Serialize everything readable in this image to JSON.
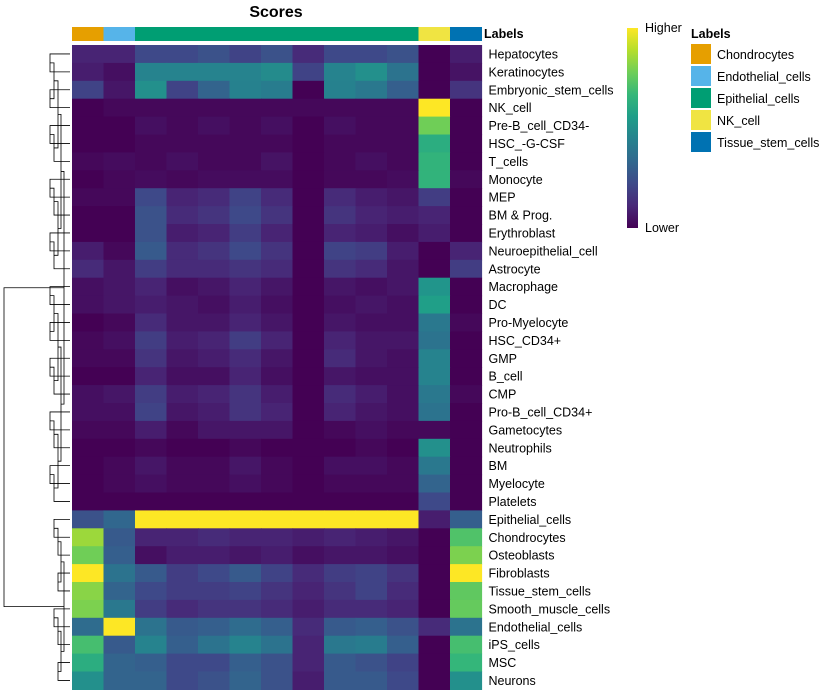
{
  "chart_data": {
    "type": "heatmap",
    "title": "Scores",
    "annotation_title": "Labels",
    "legend_title": "Labels",
    "colorbar": {
      "high_label": "Higher",
      "low_label": "Lower",
      "stops": [
        "#440154",
        "#482878",
        "#3e4a89",
        "#31688e",
        "#26828e",
        "#1f9e89",
        "#35b779",
        "#6ece58",
        "#b5de2b",
        "#fde725"
      ]
    },
    "label_colors": {
      "Chondrocytes": "#E69F00",
      "Endothelial_cells": "#56B4E9",
      "Epithelial_cells": "#009E73",
      "NK_cell": "#F0E442",
      "Tissue_stem_cells": "#0072B2"
    },
    "legend_entries": [
      "Chondrocytes",
      "Endothelial_cells",
      "Epithelial_cells",
      "NK_cell",
      "Tissue_stem_cells"
    ],
    "columns": [
      "Chondrocytes",
      "Endothelial_cells",
      "Epithelial_cells",
      "Epithelial_cells",
      "Epithelial_cells",
      "Epithelial_cells",
      "Epithelial_cells",
      "Epithelial_cells",
      "Epithelial_cells",
      "Epithelial_cells",
      "Epithelial_cells",
      "NK_cell",
      "Tissue_stem_cells"
    ],
    "rows": [
      "Hepatocytes",
      "Keratinocytes",
      "Embryonic_stem_cells",
      "NK_cell",
      "Pre-B_cell_CD34-",
      "HSC_-G-CSF",
      "T_cells",
      "Monocyte",
      "MEP",
      "BM & Prog.",
      "Erythroblast",
      "Neuroepithelial_cell",
      "Astrocyte",
      "Macrophage",
      "DC",
      "Pro-Myelocyte",
      "HSC_CD34+",
      "GMP",
      "B_cell",
      "CMP",
      "Pro-B_cell_CD34+",
      "Gametocytes",
      "Neutrophils",
      "BM",
      "Myelocyte",
      "Platelets",
      "Epithelial_cells",
      "Chondrocytes",
      "Osteoblasts",
      "Fibroblasts",
      "Tissue_stem_cells",
      "Smooth_muscle_cells",
      "Endothelial_cells",
      "iPS_cells",
      "MSC",
      "Neurons"
    ],
    "values": [
      [
        0.1,
        0.1,
        0.22,
        0.22,
        0.25,
        0.2,
        0.25,
        0.12,
        0.22,
        0.22,
        0.25,
        0.0,
        0.08
      ],
      [
        0.08,
        0.04,
        0.45,
        0.45,
        0.45,
        0.45,
        0.48,
        0.2,
        0.45,
        0.5,
        0.38,
        0.0,
        0.05
      ],
      [
        0.2,
        0.06,
        0.5,
        0.2,
        0.32,
        0.44,
        0.42,
        0.0,
        0.44,
        0.4,
        0.3,
        0.0,
        0.15
      ],
      [
        0.0,
        0.02,
        0.02,
        0.02,
        0.02,
        0.02,
        0.02,
        0.02,
        0.02,
        0.02,
        0.02,
        1.0,
        0.0
      ],
      [
        0.0,
        0.0,
        0.04,
        0.02,
        0.04,
        0.02,
        0.04,
        0.0,
        0.04,
        0.02,
        0.02,
        0.78,
        0.0
      ],
      [
        0.0,
        0.0,
        0.02,
        0.02,
        0.02,
        0.02,
        0.02,
        0.0,
        0.02,
        0.02,
        0.02,
        0.62,
        0.0
      ],
      [
        0.02,
        0.03,
        0.02,
        0.04,
        0.02,
        0.02,
        0.05,
        0.0,
        0.02,
        0.04,
        0.02,
        0.65,
        0.0
      ],
      [
        0.0,
        0.02,
        0.03,
        0.02,
        0.03,
        0.03,
        0.03,
        0.0,
        0.02,
        0.02,
        0.03,
        0.65,
        0.02
      ],
      [
        0.02,
        0.02,
        0.22,
        0.1,
        0.12,
        0.2,
        0.12,
        0.0,
        0.12,
        0.08,
        0.06,
        0.18,
        0.0
      ],
      [
        0.0,
        0.0,
        0.25,
        0.12,
        0.15,
        0.22,
        0.15,
        0.0,
        0.15,
        0.1,
        0.08,
        0.1,
        0.0
      ],
      [
        0.0,
        0.0,
        0.25,
        0.08,
        0.1,
        0.18,
        0.1,
        0.0,
        0.1,
        0.08,
        0.04,
        0.08,
        0.0
      ],
      [
        0.08,
        0.02,
        0.28,
        0.12,
        0.15,
        0.22,
        0.15,
        0.0,
        0.2,
        0.18,
        0.08,
        0.0,
        0.1
      ],
      [
        0.12,
        0.06,
        0.18,
        0.12,
        0.12,
        0.15,
        0.12,
        0.0,
        0.15,
        0.12,
        0.06,
        0.0,
        0.18
      ],
      [
        0.04,
        0.06,
        0.1,
        0.04,
        0.06,
        0.1,
        0.06,
        0.0,
        0.06,
        0.04,
        0.06,
        0.52,
        0.0
      ],
      [
        0.04,
        0.06,
        0.08,
        0.06,
        0.04,
        0.08,
        0.04,
        0.0,
        0.04,
        0.06,
        0.04,
        0.56,
        0.0
      ],
      [
        0.0,
        0.02,
        0.12,
        0.06,
        0.06,
        0.1,
        0.06,
        0.0,
        0.06,
        0.04,
        0.04,
        0.4,
        0.02
      ],
      [
        0.02,
        0.04,
        0.18,
        0.08,
        0.1,
        0.18,
        0.1,
        0.0,
        0.1,
        0.06,
        0.06,
        0.38,
        0.0
      ],
      [
        0.02,
        0.02,
        0.15,
        0.06,
        0.08,
        0.12,
        0.06,
        0.0,
        0.12,
        0.06,
        0.04,
        0.45,
        0.0
      ],
      [
        0.0,
        0.0,
        0.1,
        0.04,
        0.04,
        0.1,
        0.04,
        0.0,
        0.06,
        0.04,
        0.04,
        0.45,
        0.0
      ],
      [
        0.04,
        0.06,
        0.18,
        0.08,
        0.1,
        0.15,
        0.08,
        0.0,
        0.12,
        0.08,
        0.04,
        0.4,
        0.02
      ],
      [
        0.04,
        0.04,
        0.2,
        0.06,
        0.08,
        0.15,
        0.1,
        0.0,
        0.1,
        0.06,
        0.04,
        0.38,
        0.0
      ],
      [
        0.02,
        0.02,
        0.08,
        0.02,
        0.06,
        0.06,
        0.06,
        0.0,
        0.02,
        0.04,
        0.02,
        0.02,
        0.0
      ],
      [
        0.0,
        0.0,
        0.02,
        0.0,
        0.0,
        0.02,
        0.0,
        0.0,
        0.0,
        0.02,
        0.0,
        0.5,
        0.0
      ],
      [
        0.0,
        0.02,
        0.06,
        0.02,
        0.02,
        0.06,
        0.02,
        0.0,
        0.04,
        0.04,
        0.02,
        0.4,
        0.0
      ],
      [
        0.0,
        0.02,
        0.04,
        0.02,
        0.02,
        0.04,
        0.02,
        0.0,
        0.02,
        0.02,
        0.02,
        0.32,
        0.0
      ],
      [
        0.0,
        0.0,
        0.0,
        0.0,
        0.0,
        0.0,
        0.0,
        0.0,
        0.0,
        0.0,
        0.0,
        0.22,
        0.0
      ],
      [
        0.25,
        0.33,
        1.0,
        1.0,
        1.0,
        1.0,
        1.0,
        1.0,
        1.0,
        1.0,
        1.0,
        0.08,
        0.3
      ],
      [
        0.85,
        0.28,
        0.1,
        0.1,
        0.12,
        0.1,
        0.1,
        0.08,
        0.1,
        0.08,
        0.06,
        0.0,
        0.72
      ],
      [
        0.78,
        0.3,
        0.04,
        0.08,
        0.08,
        0.06,
        0.08,
        0.04,
        0.06,
        0.06,
        0.04,
        0.0,
        0.8
      ],
      [
        1.0,
        0.38,
        0.28,
        0.18,
        0.22,
        0.28,
        0.2,
        0.12,
        0.18,
        0.2,
        0.15,
        0.0,
        1.0
      ],
      [
        0.82,
        0.32,
        0.22,
        0.18,
        0.18,
        0.2,
        0.15,
        0.1,
        0.15,
        0.2,
        0.12,
        0.0,
        0.75
      ],
      [
        0.8,
        0.4,
        0.18,
        0.12,
        0.15,
        0.15,
        0.12,
        0.08,
        0.12,
        0.12,
        0.1,
        0.0,
        0.76
      ],
      [
        0.35,
        1.0,
        0.38,
        0.28,
        0.3,
        0.35,
        0.3,
        0.12,
        0.28,
        0.3,
        0.25,
        0.12,
        0.38
      ],
      [
        0.7,
        0.28,
        0.45,
        0.3,
        0.38,
        0.45,
        0.38,
        0.1,
        0.4,
        0.42,
        0.3,
        0.0,
        0.7
      ],
      [
        0.62,
        0.32,
        0.3,
        0.22,
        0.22,
        0.3,
        0.25,
        0.1,
        0.28,
        0.25,
        0.2,
        0.0,
        0.66
      ],
      [
        0.5,
        0.32,
        0.32,
        0.22,
        0.25,
        0.32,
        0.25,
        0.08,
        0.28,
        0.28,
        0.22,
        0.0,
        0.5
      ]
    ]
  }
}
